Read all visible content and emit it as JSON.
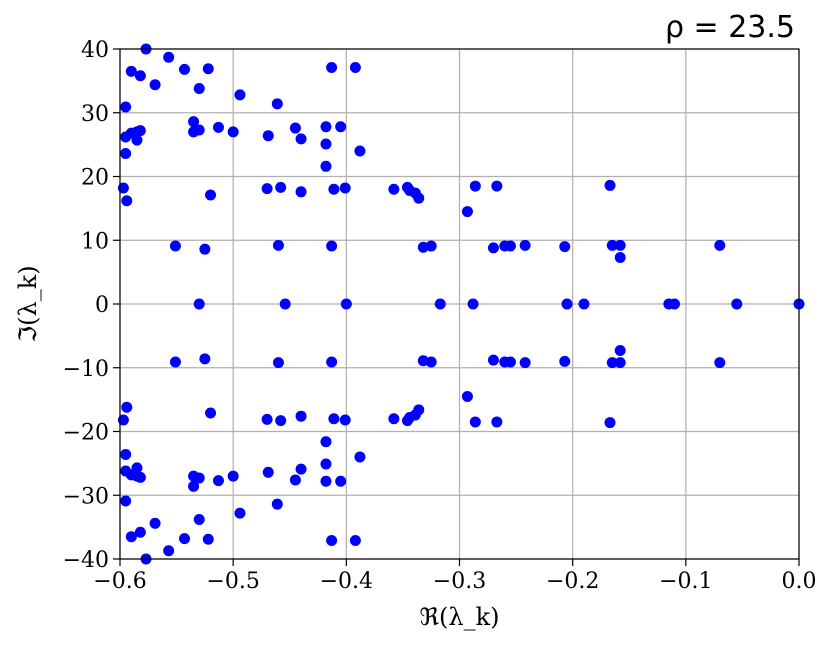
{
  "chart_data": {
    "type": "scatter",
    "title": "ρ = 23.5",
    "xlabel": "ℜ(λ_k)",
    "ylabel": "ℑ(λ_k)",
    "xlim": [
      -0.6,
      0.0
    ],
    "ylim": [
      -40,
      40
    ],
    "xticks": [
      "−0.6",
      "−0.5",
      "−0.4",
      "−0.3",
      "−0.2",
      "−0.1",
      "0.0"
    ],
    "yticks": [
      "−40",
      "−30",
      "−20",
      "−10",
      "0",
      "10",
      "20",
      "30",
      "40"
    ],
    "grid": true,
    "marker_color": "#0000ff",
    "points": [
      [
        0.0,
        0
      ],
      [
        -0.055,
        0
      ],
      [
        -0.11,
        0
      ],
      [
        -0.115,
        0
      ],
      [
        -0.19,
        0
      ],
      [
        -0.205,
        0
      ],
      [
        -0.288,
        0
      ],
      [
        -0.317,
        0
      ],
      [
        -0.4,
        0
      ],
      [
        -0.454,
        0
      ],
      [
        -0.53,
        0
      ],
      [
        -0.07,
        9.2
      ],
      [
        -0.07,
        -9.2
      ],
      [
        -0.158,
        9.2
      ],
      [
        -0.158,
        -9.2
      ],
      [
        -0.158,
        7.3
      ],
      [
        -0.158,
        -7.3
      ],
      [
        -0.165,
        9.2
      ],
      [
        -0.165,
        -9.2
      ],
      [
        -0.207,
        9.0
      ],
      [
        -0.207,
        -9.0
      ],
      [
        -0.242,
        9.2
      ],
      [
        -0.242,
        -9.2
      ],
      [
        -0.255,
        9.1
      ],
      [
        -0.255,
        -9.1
      ],
      [
        -0.26,
        9.1
      ],
      [
        -0.26,
        -9.1
      ],
      [
        -0.27,
        8.8
      ],
      [
        -0.27,
        -8.8
      ],
      [
        -0.325,
        9.1
      ],
      [
        -0.325,
        -9.1
      ],
      [
        -0.332,
        8.9
      ],
      [
        -0.332,
        -8.9
      ],
      [
        -0.413,
        9.1
      ],
      [
        -0.413,
        -9.1
      ],
      [
        -0.46,
        9.2
      ],
      [
        -0.46,
        -9.2
      ],
      [
        -0.525,
        8.6
      ],
      [
        -0.525,
        -8.6
      ],
      [
        -0.551,
        9.1
      ],
      [
        -0.551,
        -9.1
      ],
      [
        -0.167,
        18.6
      ],
      [
        -0.167,
        -18.6
      ],
      [
        -0.267,
        18.5
      ],
      [
        -0.267,
        -18.5
      ],
      [
        -0.286,
        18.5
      ],
      [
        -0.286,
        -18.5
      ],
      [
        -0.293,
        14.5
      ],
      [
        -0.293,
        -14.5
      ],
      [
        -0.336,
        16.6
      ],
      [
        -0.336,
        -16.6
      ],
      [
        -0.339,
        17.4
      ],
      [
        -0.339,
        -17.4
      ],
      [
        -0.344,
        17.8
      ],
      [
        -0.344,
        -17.8
      ],
      [
        -0.346,
        18.3
      ],
      [
        -0.346,
        -18.3
      ],
      [
        -0.358,
        18.0
      ],
      [
        -0.358,
        -18.0
      ],
      [
        -0.388,
        24.0
      ],
      [
        -0.388,
        -24.0
      ],
      [
        -0.401,
        18.2
      ],
      [
        -0.401,
        -18.2
      ],
      [
        -0.411,
        18.0
      ],
      [
        -0.411,
        -18.0
      ],
      [
        -0.405,
        27.8
      ],
      [
        -0.405,
        -27.8
      ],
      [
        -0.418,
        21.6
      ],
      [
        -0.418,
        -21.6
      ],
      [
        -0.418,
        25.1
      ],
      [
        -0.418,
        -25.1
      ],
      [
        -0.418,
        27.8
      ],
      [
        -0.418,
        -27.8
      ],
      [
        -0.392,
        37.1
      ],
      [
        -0.392,
        -37.1
      ],
      [
        -0.413,
        37.1
      ],
      [
        -0.413,
        -37.1
      ],
      [
        -0.44,
        17.6
      ],
      [
        -0.44,
        -17.6
      ],
      [
        -0.44,
        25.9
      ],
      [
        -0.44,
        -25.9
      ],
      [
        -0.445,
        27.6
      ],
      [
        -0.445,
        -27.6
      ],
      [
        -0.458,
        18.3
      ],
      [
        -0.458,
        -18.3
      ],
      [
        -0.461,
        31.4
      ],
      [
        -0.461,
        -31.4
      ],
      [
        -0.47,
        18.1
      ],
      [
        -0.47,
        -18.1
      ],
      [
        -0.469,
        26.4
      ],
      [
        -0.469,
        -26.4
      ],
      [
        -0.494,
        32.8
      ],
      [
        -0.494,
        -32.8
      ],
      [
        -0.5,
        27.0
      ],
      [
        -0.5,
        -27.0
      ],
      [
        -0.513,
        27.7
      ],
      [
        -0.513,
        -27.7
      ],
      [
        -0.52,
        17.1
      ],
      [
        -0.52,
        -17.1
      ],
      [
        -0.522,
        36.9
      ],
      [
        -0.522,
        -36.9
      ],
      [
        -0.53,
        27.3
      ],
      [
        -0.53,
        -27.3
      ],
      [
        -0.53,
        33.8
      ],
      [
        -0.53,
        -33.8
      ],
      [
        -0.535,
        27.0
      ],
      [
        -0.535,
        -27.0
      ],
      [
        -0.535,
        28.6
      ],
      [
        -0.535,
        -28.6
      ],
      [
        -0.543,
        36.8
      ],
      [
        -0.543,
        -36.8
      ],
      [
        -0.557,
        38.7
      ],
      [
        -0.557,
        -38.7
      ],
      [
        -0.569,
        34.4
      ],
      [
        -0.569,
        -34.4
      ],
      [
        -0.577,
        40.0
      ],
      [
        -0.577,
        -40.0
      ],
      [
        -0.582,
        27.2
      ],
      [
        -0.582,
        -27.2
      ],
      [
        -0.582,
        35.8
      ],
      [
        -0.582,
        -35.8
      ],
      [
        -0.585,
        25.7
      ],
      [
        -0.585,
        -25.7
      ],
      [
        -0.585,
        27.0
      ],
      [
        -0.585,
        -27.0
      ],
      [
        -0.59,
        36.5
      ],
      [
        -0.59,
        -36.5
      ],
      [
        -0.59,
        26.8
      ],
      [
        -0.59,
        -26.8
      ],
      [
        -0.594,
        16.2
      ],
      [
        -0.594,
        -16.2
      ],
      [
        -0.595,
        23.6
      ],
      [
        -0.595,
        -23.6
      ],
      [
        -0.595,
        26.2
      ],
      [
        -0.595,
        -26.2
      ],
      [
        -0.595,
        30.9
      ],
      [
        -0.595,
        -30.9
      ],
      [
        -0.597,
        18.2
      ],
      [
        -0.597,
        -18.2
      ]
    ]
  }
}
